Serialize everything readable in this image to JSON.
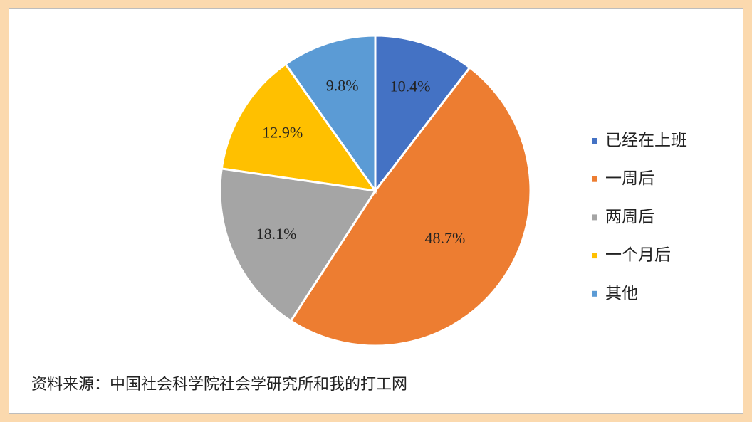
{
  "chart_data": {
    "type": "pie",
    "categories": [
      "已经在上班",
      "一周后",
      "两周后",
      "一个月后",
      "其他"
    ],
    "values": [
      10.4,
      48.7,
      18.1,
      12.9,
      9.8
    ],
    "value_labels": [
      "10.4%",
      "48.7%",
      "18.1%",
      "12.9%",
      "9.8%"
    ],
    "colors": [
      "#4472c4",
      "#ed7d31",
      "#a5a5a5",
      "#ffc000",
      "#5b9bd5"
    ],
    "legend": "right",
    "source": "资料来源：中国社会科学院社会学研究所和我的打工网"
  }
}
